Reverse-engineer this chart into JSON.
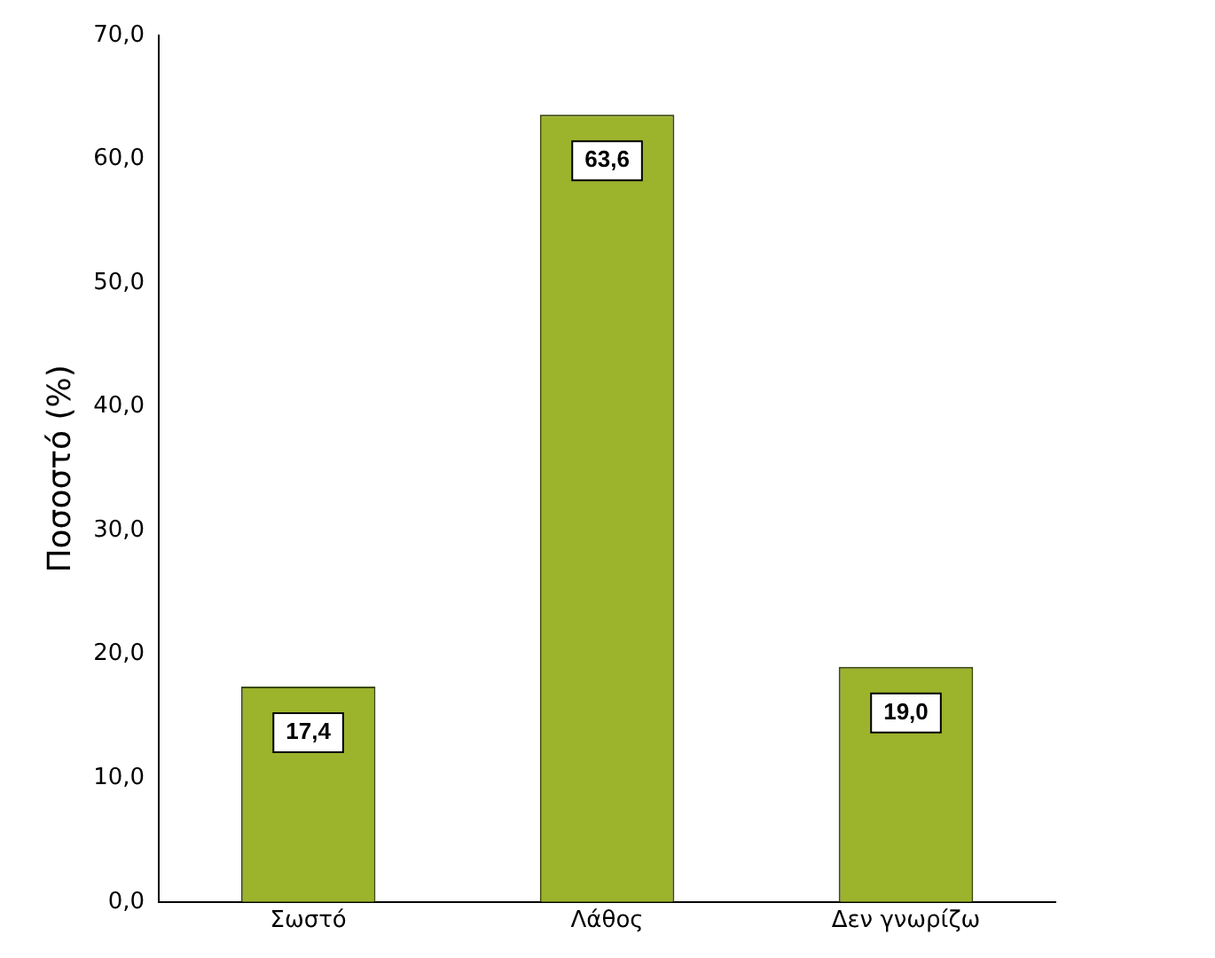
{
  "chart_data": {
    "type": "bar",
    "ylabel": "Ποσοστό (%)",
    "categories": [
      "Σωστό",
      "Λάθος",
      "Δεν γνωρίζω"
    ],
    "values": [
      17.4,
      63.6,
      19.0
    ],
    "value_labels": [
      "17,4",
      "63,6",
      "19,0"
    ],
    "color": "#9cb32c",
    "ylim": [
      0,
      70
    ],
    "yticks": [
      {
        "value": 0,
        "label": "0,0"
      },
      {
        "value": 10,
        "label": "10,0"
      },
      {
        "value": 20,
        "label": "20,0"
      },
      {
        "value": 30,
        "label": "30,0"
      },
      {
        "value": 40,
        "label": "40,0"
      },
      {
        "value": 50,
        "label": "50,0"
      },
      {
        "value": 60,
        "label": "60,0"
      },
      {
        "value": 70,
        "label": "70,0"
      }
    ]
  }
}
